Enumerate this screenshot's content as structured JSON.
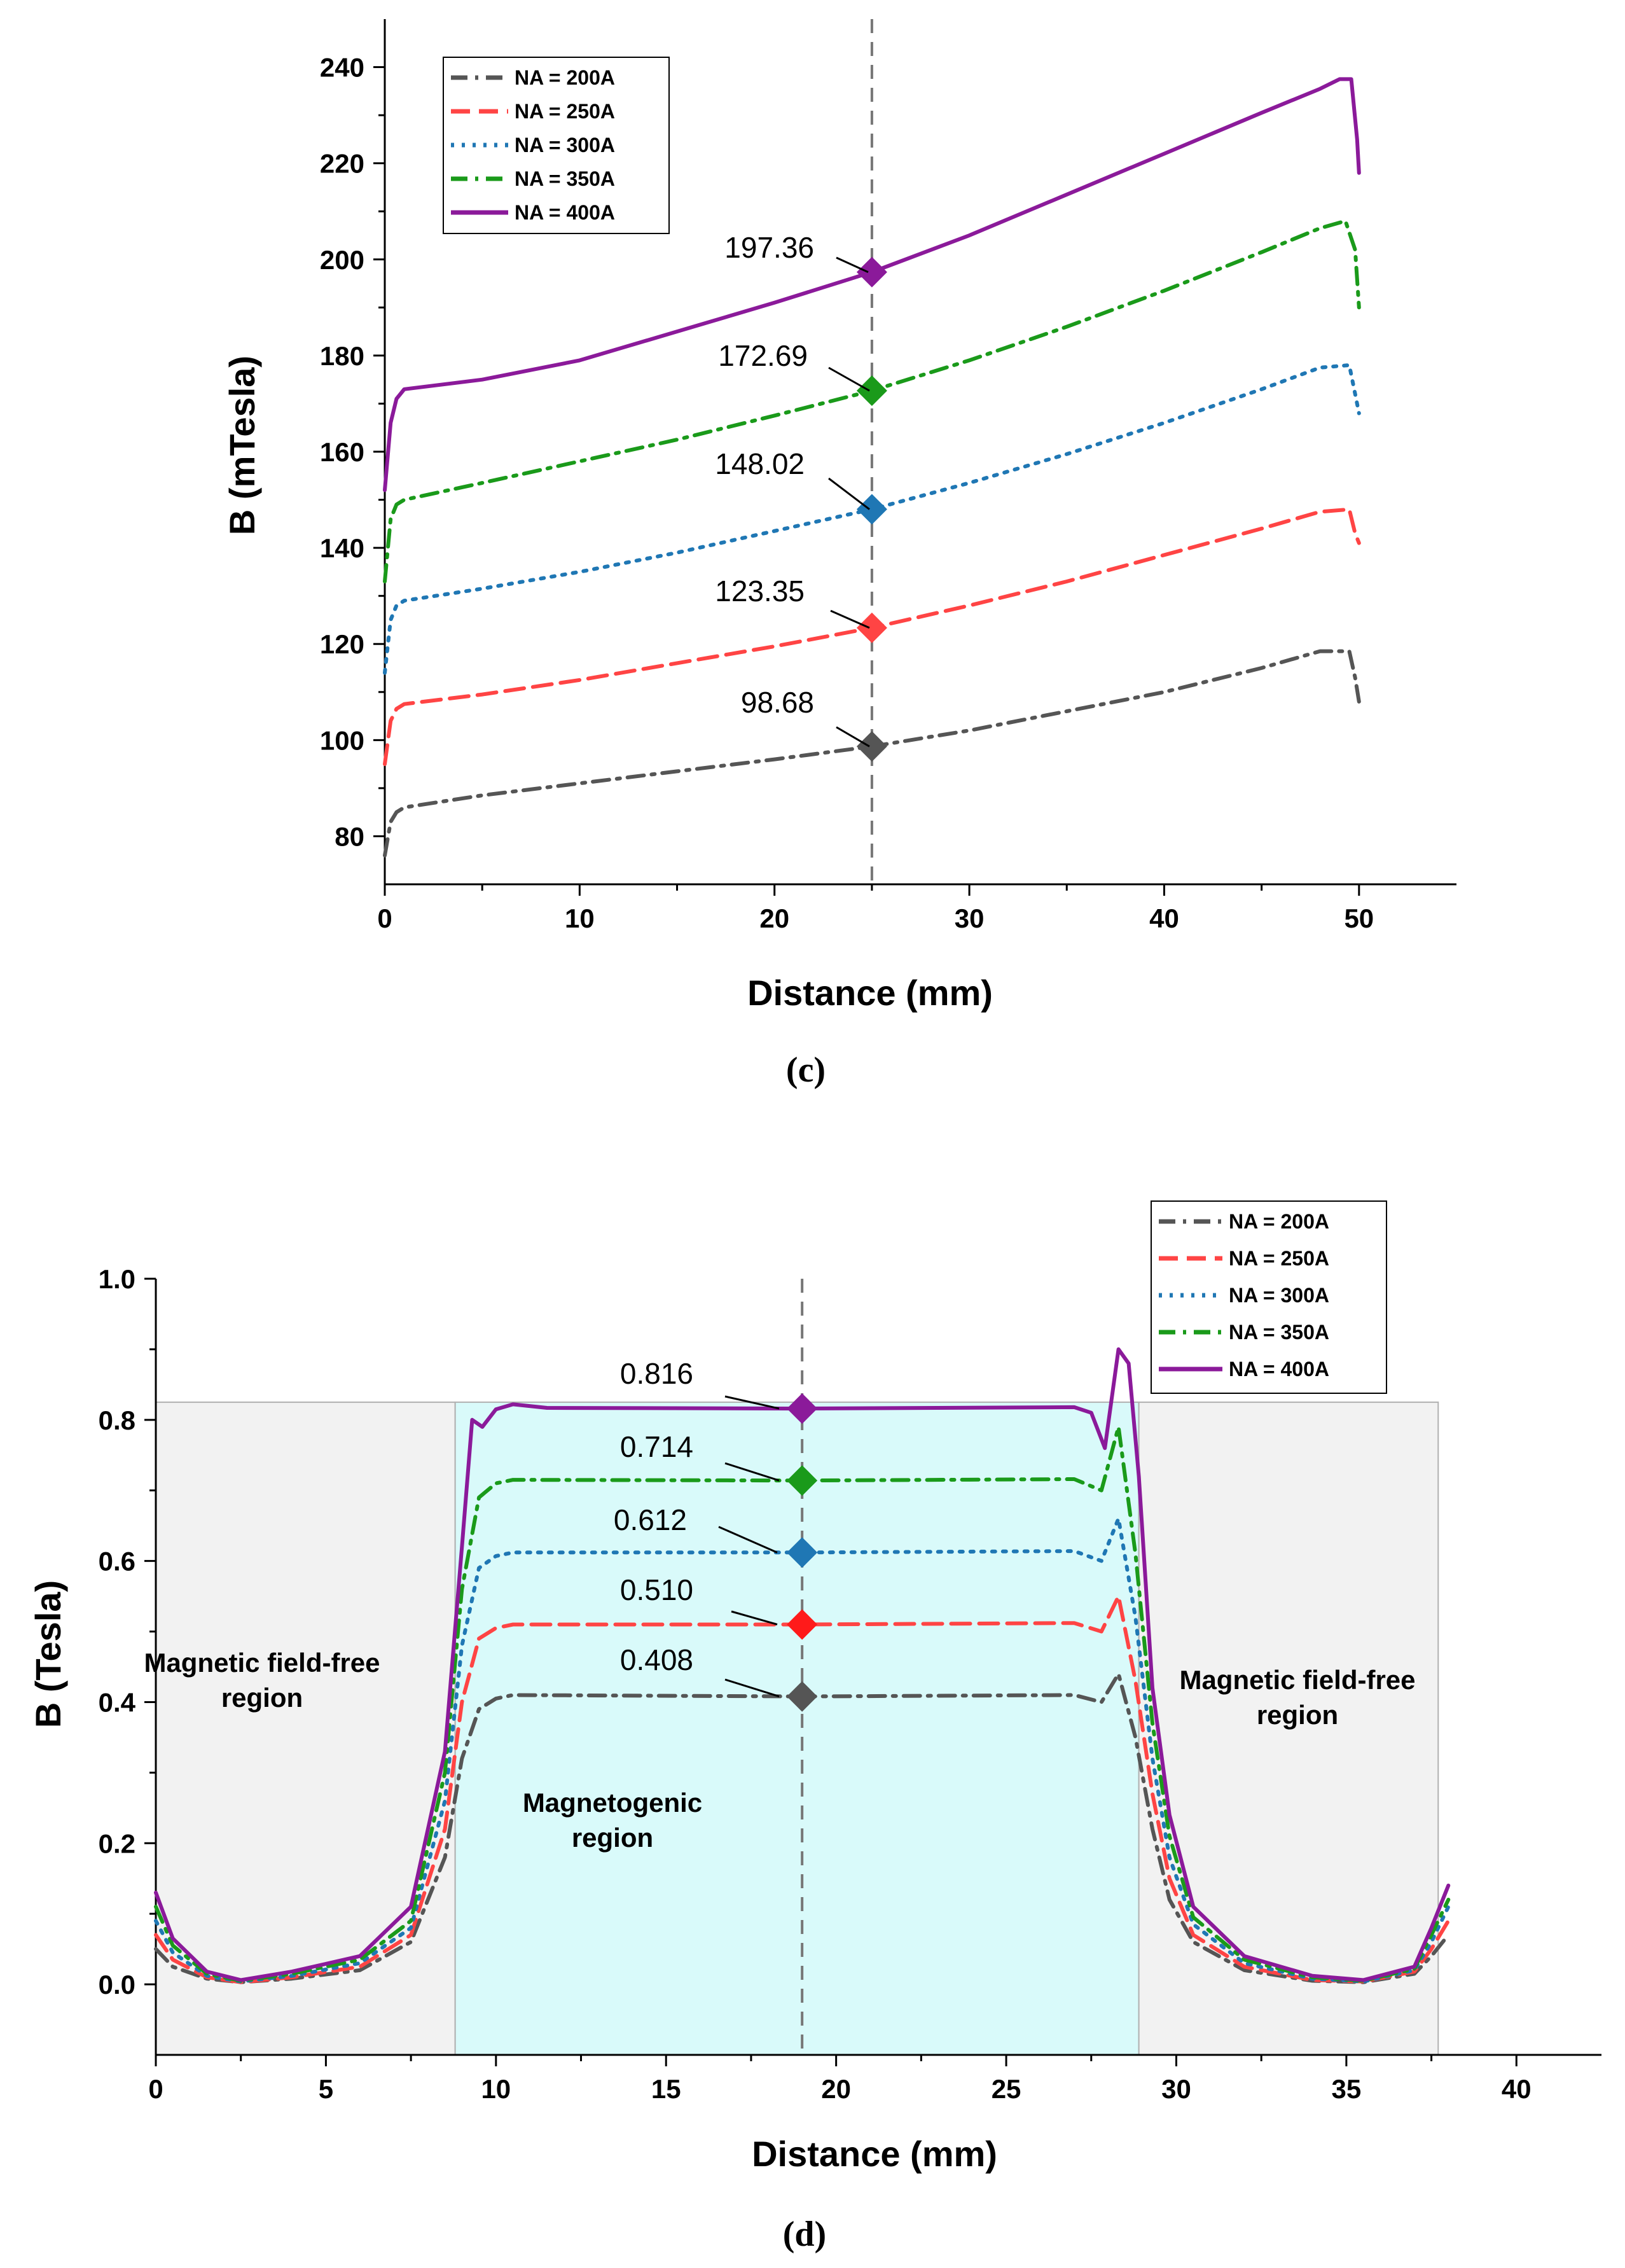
{
  "chart_data": [
    {
      "type": "line",
      "caption": "(c)",
      "xlabel": "Distance (mm)",
      "ylabel": "B (mTesla)",
      "xlim": [
        0,
        55
      ],
      "ylim": [
        70,
        250
      ],
      "xticks": [
        0,
        10,
        20,
        30,
        40,
        50
      ],
      "yticks": [
        80,
        100,
        120,
        140,
        160,
        180,
        200,
        220,
        240
      ],
      "legend_position": "top-left",
      "marker_x": 25,
      "series": [
        {
          "name": "NA = 200A",
          "color": "#555555",
          "style": "dashdot",
          "x": [
            0,
            0.3,
            0.6,
            1,
            5,
            10,
            15,
            20,
            25,
            30,
            35,
            40,
            45,
            48,
            49.5,
            49.8,
            50
          ],
          "y": [
            76,
            83,
            85,
            86,
            88.5,
            91,
            93.5,
            96,
            98.68,
            102,
            106,
            110,
            115,
            118.5,
            118.5,
            113,
            108
          ]
        },
        {
          "name": "NA = 250A",
          "color": "#ff4444",
          "style": "dash",
          "x": [
            0,
            0.3,
            0.6,
            1,
            5,
            10,
            15,
            20,
            25,
            30,
            35,
            40,
            45,
            48,
            49.5,
            49.8,
            50
          ],
          "y": [
            95,
            104,
            106.5,
            107.5,
            109.5,
            112.5,
            116,
            119.5,
            123.35,
            128,
            133,
            138.5,
            144,
            147.5,
            148,
            143,
            141
          ]
        },
        {
          "name": "NA = 300A",
          "color": "#1f77b4",
          "style": "dot",
          "x": [
            0,
            0.3,
            0.6,
            1,
            5,
            10,
            15,
            20,
            25,
            30,
            35,
            40,
            45,
            48,
            49.5,
            49.8,
            50
          ],
          "y": [
            114,
            125,
            128,
            129,
            131.5,
            135,
            139,
            143.5,
            148.02,
            153.5,
            159.5,
            166,
            173,
            177.5,
            178,
            172,
            168
          ]
        },
        {
          "name": "NA = 350A",
          "color": "#1a9a1a",
          "style": "dashdot",
          "x": [
            0,
            0.3,
            0.6,
            1,
            5,
            10,
            15,
            20,
            25,
            30,
            35,
            40,
            45,
            48,
            49.3,
            49.8,
            50
          ],
          "y": [
            133,
            146,
            149,
            150,
            153.5,
            158,
            162.5,
            167.5,
            172.69,
            179,
            186,
            193.5,
            201.5,
            206.5,
            208,
            202,
            190
          ]
        },
        {
          "name": "NA = 400A",
          "color": "#8b1a9a",
          "style": "solid",
          "x": [
            0,
            0.3,
            0.6,
            1,
            5,
            10,
            15,
            20,
            25,
            30,
            35,
            40,
            45,
            48,
            49,
            49.6,
            49.9,
            50
          ],
          "y": [
            152,
            166,
            171,
            173,
            175,
            179,
            185,
            191,
            197.36,
            205,
            213.5,
            222,
            230.5,
            235.5,
            237.5,
            237.5,
            225,
            218
          ]
        }
      ],
      "annotations": [
        {
          "label": "197.36",
          "value": 197.36,
          "color": "#8b1a9a"
        },
        {
          "label": "172.69",
          "value": 172.69,
          "color": "#1a9a1a"
        },
        {
          "label": "148.02",
          "value": 148.02,
          "color": "#1f77b4"
        },
        {
          "label": "123.35",
          "value": 123.35,
          "color": "#ff4444"
        },
        {
          "label": "98.68",
          "value": 98.68,
          "color": "#555555"
        }
      ]
    },
    {
      "type": "line",
      "caption": "(d)",
      "xlabel": "Distance (mm)",
      "ylabel": "B (Tesla)",
      "xlim": [
        0,
        42.5
      ],
      "ylim": [
        -0.1,
        1.0
      ],
      "xticks": [
        0,
        5,
        10,
        15,
        20,
        25,
        30,
        35,
        40
      ],
      "yticks": [
        0.0,
        0.2,
        0.4,
        0.6,
        0.8,
        1.0
      ],
      "legend_position": "top-right",
      "marker_x": 19,
      "regions": [
        {
          "name": "left-free",
          "x0": 0,
          "x1": 8.8,
          "ymax": 0.825,
          "color": "#f2f2f2",
          "label": "Magnetic field-free region"
        },
        {
          "name": "magnetogenic",
          "x0": 8.8,
          "x1": 28.9,
          "ymax": 0.825,
          "color": "#d9fafa",
          "label": "Magnetogenic region"
        },
        {
          "name": "right-free",
          "x0": 28.9,
          "x1": 37.7,
          "ymax": 0.825,
          "color": "#f2f2f2",
          "label": "Magnetic field-free region"
        }
      ],
      "series": [
        {
          "name": "NA = 200A",
          "color": "#555555",
          "style": "dashdot",
          "x": [
            0,
            0.5,
            1.5,
            2.5,
            4,
            6,
            7.5,
            8.5,
            9,
            9.5,
            10,
            10.5,
            19,
            27,
            27.8,
            28.3,
            28.8,
            29.3,
            29.8,
            30.5,
            32,
            34,
            35.5,
            37,
            37.5,
            38
          ],
          "y": [
            0.05,
            0.025,
            0.008,
            0.003,
            0.008,
            0.02,
            0.06,
            0.18,
            0.32,
            0.39,
            0.405,
            0.41,
            0.408,
            0.41,
            0.4,
            0.44,
            0.35,
            0.22,
            0.12,
            0.06,
            0.02,
            0.005,
            0.003,
            0.015,
            0.04,
            0.07
          ]
        },
        {
          "name": "NA = 250A",
          "color": "#ff4444",
          "style": "dash",
          "x": [
            0,
            0.5,
            1.5,
            2.5,
            4,
            6,
            7.5,
            8.5,
            9,
            9.5,
            10,
            10.5,
            19,
            27,
            27.8,
            28.3,
            28.8,
            29.3,
            29.8,
            30.5,
            32,
            34,
            35.5,
            37,
            37.5,
            38
          ],
          "y": [
            0.07,
            0.035,
            0.01,
            0.003,
            0.01,
            0.025,
            0.07,
            0.22,
            0.4,
            0.49,
            0.505,
            0.51,
            0.51,
            0.512,
            0.5,
            0.55,
            0.43,
            0.27,
            0.15,
            0.07,
            0.025,
            0.006,
            0.004,
            0.018,
            0.05,
            0.09
          ]
        },
        {
          "name": "NA = 300A",
          "color": "#1f77b4",
          "style": "dot",
          "x": [
            0,
            0.5,
            1.5,
            2.5,
            4,
            6,
            7.5,
            8.5,
            9,
            9.5,
            10,
            10.5,
            19,
            27,
            27.8,
            28.3,
            28.8,
            29.3,
            29.8,
            30.5,
            32,
            34,
            35.5,
            37,
            37.5,
            38
          ],
          "y": [
            0.09,
            0.045,
            0.012,
            0.004,
            0.012,
            0.03,
            0.08,
            0.26,
            0.48,
            0.59,
            0.607,
            0.612,
            0.612,
            0.614,
            0.6,
            0.66,
            0.52,
            0.32,
            0.18,
            0.085,
            0.03,
            0.008,
            0.004,
            0.02,
            0.06,
            0.11
          ]
        },
        {
          "name": "NA = 350A",
          "color": "#1a9a1a",
          "style": "dashdot",
          "x": [
            0,
            0.5,
            1.5,
            2.5,
            4,
            6,
            7.5,
            8.5,
            9,
            9.5,
            10,
            10.5,
            19,
            27,
            27.8,
            28.3,
            28.8,
            29.3,
            29.8,
            30.5,
            32,
            34,
            35.5,
            37,
            37.5,
            38
          ],
          "y": [
            0.11,
            0.055,
            0.015,
            0.005,
            0.015,
            0.035,
            0.09,
            0.3,
            0.56,
            0.69,
            0.71,
            0.715,
            0.714,
            0.716,
            0.7,
            0.79,
            0.61,
            0.37,
            0.21,
            0.095,
            0.035,
            0.01,
            0.005,
            0.022,
            0.07,
            0.12
          ]
        },
        {
          "name": "NA = 400A",
          "color": "#8b1a9a",
          "style": "solid",
          "x": [
            0,
            0.5,
            1.5,
            2.5,
            4,
            6,
            7.5,
            8.5,
            9,
            9.3,
            9.6,
            10,
            10.5,
            11.5,
            19,
            27,
            27.5,
            27.9,
            28.3,
            28.6,
            28.9,
            29.3,
            29.8,
            30.5,
            32,
            34,
            35.5,
            37,
            37.5,
            38
          ],
          "y": [
            0.13,
            0.065,
            0.018,
            0.006,
            0.018,
            0.04,
            0.11,
            0.33,
            0.62,
            0.8,
            0.79,
            0.815,
            0.822,
            0.817,
            0.816,
            0.818,
            0.81,
            0.76,
            0.9,
            0.88,
            0.72,
            0.42,
            0.24,
            0.11,
            0.04,
            0.012,
            0.006,
            0.025,
            0.08,
            0.14
          ]
        }
      ],
      "annotations": [
        {
          "label": "0.816",
          "value": 0.816,
          "color": "#8b1a9a"
        },
        {
          "label": "0.714",
          "value": 0.714,
          "color": "#1a9a1a"
        },
        {
          "label": "0.612",
          "value": 0.612,
          "color": "#1f77b4"
        },
        {
          "label": "0.510",
          "value": 0.51,
          "color": "#ff1a1a"
        },
        {
          "label": "0.408",
          "value": 0.408,
          "color": "#555555"
        }
      ],
      "region_labels": {
        "left": [
          "Magnetic field-free",
          "region"
        ],
        "center": [
          "Magnetogenic",
          "region"
        ],
        "right": [
          "Magnetic field-free",
          "region"
        ]
      }
    }
  ]
}
